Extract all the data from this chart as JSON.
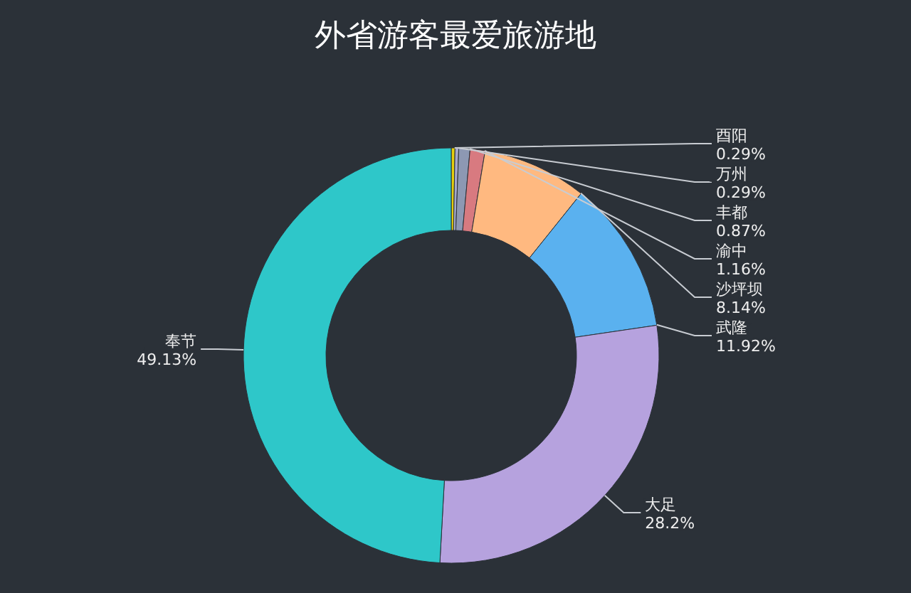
{
  "chart_data": {
    "type": "donut",
    "title": "外省游客最爱旅游地",
    "categories": [
      "酉阳",
      "万州",
      "丰都",
      "渝中",
      "沙坪坝",
      "武隆",
      "大足",
      "奉节"
    ],
    "values": [
      0.29,
      0.29,
      0.87,
      1.16,
      8.14,
      11.92,
      28.2,
      49.13
    ],
    "value_labels": [
      "0.29%",
      "0.29%",
      "0.87%",
      "1.16%",
      "8.14%",
      "11.92%",
      "28.2%",
      "49.13%"
    ],
    "colors": [
      "#e5cf0d",
      "#a5a9c9",
      "#8d98b3",
      "#d87a80",
      "#ffb980",
      "#5ab1ef",
      "#b6a2de",
      "#2ec7c9"
    ]
  }
}
